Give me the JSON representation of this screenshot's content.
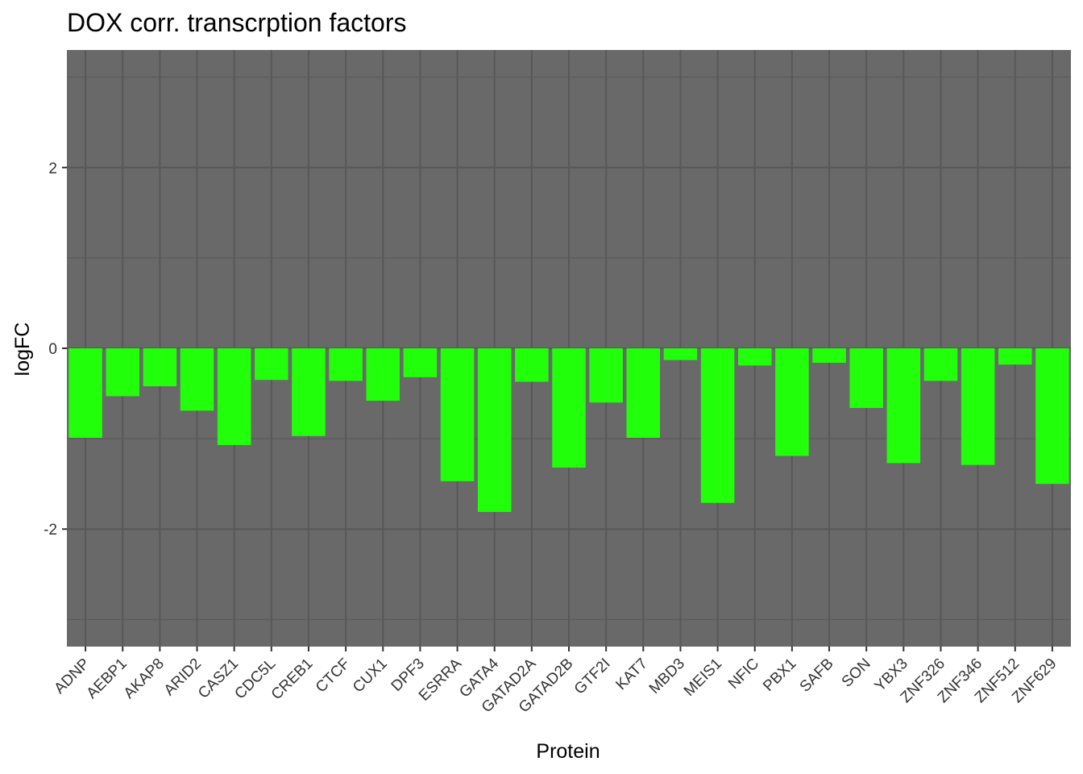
{
  "chart_data": {
    "type": "bar",
    "title": "DOX corr. transcrption factors",
    "xlabel": "Protein",
    "ylabel": "logFC",
    "ylim": [
      -3.3,
      3.3
    ],
    "yticks": [
      -2,
      0,
      2
    ],
    "ytick_labels": [
      "-2",
      "0",
      "2"
    ],
    "grid": true,
    "legend": "none",
    "panel_color": "#696969",
    "grid_color": "#585858",
    "bar_color": "#22ff0a",
    "categories": [
      "ADNP",
      "AEBP1",
      "AKAP8",
      "ARID2",
      "CASZ1",
      "CDC5L",
      "CREB1",
      "CTCF",
      "CUX1",
      "DPF3",
      "ESRRA",
      "GATA4",
      "GATAD2A",
      "GATAD2B",
      "GTF2I",
      "KAT7",
      "MBD3",
      "MEIS1",
      "NFIC",
      "PBX1",
      "SAFB",
      "SON",
      "YBX3",
      "ZNF326",
      "ZNF346",
      "ZNF512",
      "ZNF629"
    ],
    "values": [
      -0.99,
      -0.53,
      -0.42,
      -0.69,
      -1.07,
      -0.35,
      -0.97,
      -0.36,
      -0.58,
      -0.32,
      -1.47,
      -1.81,
      -0.37,
      -1.32,
      -0.6,
      -0.99,
      -0.13,
      -1.71,
      -0.19,
      -1.19,
      -0.16,
      -0.66,
      -1.27,
      -0.36,
      -1.29,
      -0.18,
      -1.5
    ]
  }
}
